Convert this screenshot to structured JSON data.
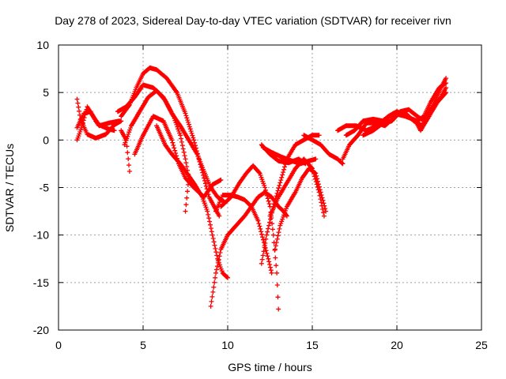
{
  "chart_data": {
    "type": "scatter",
    "title": "Day 278 of 2023, Sidereal Day-to-day VTEC variation (SDTVAR) for receiver rivn",
    "xlabel": "GPS time / hours",
    "ylabel": "SDTVAR / TECUs",
    "xlim": [
      0,
      25
    ],
    "ylim": [
      -20,
      10
    ],
    "xticks": [
      0,
      5,
      10,
      15,
      20,
      25
    ],
    "yticks": [
      -20,
      -15,
      -10,
      -5,
      0,
      5,
      10
    ],
    "grid": true,
    "marker": "+",
    "color": "#ff0000",
    "tracks": [
      [
        [
          1.1,
          4.3
        ],
        [
          1.3,
          2.2
        ],
        [
          1.7,
          0.6
        ],
        [
          2.2,
          0.2
        ],
        [
          2.8,
          0.6
        ],
        [
          3.3,
          1.6
        ],
        [
          3.7,
          2.0
        ]
      ],
      [
        [
          1.1,
          1.3
        ],
        [
          1.5,
          2.8
        ],
        [
          1.9,
          3.0
        ],
        [
          2.2,
          2.0
        ],
        [
          2.4,
          1.5
        ],
        [
          3.0,
          1.8
        ],
        [
          3.6,
          2.0
        ]
      ],
      [
        [
          1.1,
          0.0
        ],
        [
          1.4,
          1.5
        ],
        [
          1.7,
          3.5
        ],
        [
          2.0,
          2.6
        ],
        [
          2.4,
          1.6
        ],
        [
          2.9,
          1.2
        ],
        [
          3.3,
          1.0
        ]
      ],
      [
        [
          3.7,
          1.0
        ],
        [
          4.0,
          0.0
        ],
        [
          4.2,
          -3.3
        ]
      ],
      [
        [
          3.5,
          3.0
        ],
        [
          4.0,
          3.5
        ],
        [
          4.5,
          4.5
        ],
        [
          5.0,
          5.8
        ],
        [
          5.6,
          5.5
        ],
        [
          6.2,
          4.5
        ],
        [
          6.8,
          2.5
        ],
        [
          7.2,
          0.5
        ],
        [
          7.5,
          -2.0
        ],
        [
          7.7,
          -4.0
        ],
        [
          7.5,
          -7.5
        ]
      ],
      [
        [
          3.7,
          2.5
        ],
        [
          4.2,
          3.7
        ],
        [
          4.6,
          5.5
        ],
        [
          5.0,
          7.0
        ],
        [
          5.4,
          7.6
        ],
        [
          5.8,
          7.4
        ],
        [
          6.4,
          6.5
        ],
        [
          7.0,
          5.0
        ],
        [
          7.5,
          2.8
        ],
        [
          8.0,
          0.0
        ],
        [
          8.3,
          -2.0
        ],
        [
          8.6,
          -4.0
        ],
        [
          8.9,
          -6.0
        ],
        [
          9.2,
          -7.0
        ],
        [
          9.5,
          -8.0
        ]
      ],
      [
        [
          3.9,
          -0.5
        ],
        [
          4.3,
          1.5
        ],
        [
          4.8,
          3.0
        ],
        [
          5.3,
          4.5
        ],
        [
          5.8,
          5.2
        ],
        [
          6.3,
          4.2
        ],
        [
          6.7,
          2.8
        ],
        [
          7.2,
          1.5
        ],
        [
          7.7,
          0.0
        ],
        [
          8.2,
          -1.5
        ],
        [
          8.6,
          -3.3
        ],
        [
          9.0,
          -5.0
        ],
        [
          9.4,
          -6.0
        ],
        [
          9.8,
          -6.5
        ]
      ],
      [
        [
          4.5,
          -1.5
        ],
        [
          5.0,
          0.5
        ],
        [
          5.6,
          2.5
        ],
        [
          6.2,
          2.0
        ],
        [
          6.7,
          0.0
        ],
        [
          7.1,
          -2.5
        ],
        [
          7.5,
          -4.0
        ],
        [
          8.0,
          -5.0
        ],
        [
          8.6,
          -6.0
        ],
        [
          9.1,
          -4.7
        ],
        [
          9.6,
          -4.2
        ]
      ],
      [
        [
          5.8,
          1.5
        ],
        [
          6.3,
          -0.5
        ],
        [
          6.7,
          -1.5
        ],
        [
          7.2,
          -2.5
        ],
        [
          7.6,
          -3.5
        ],
        [
          8.1,
          -4.8
        ],
        [
          8.5,
          -6.0
        ],
        [
          8.8,
          -7.5
        ],
        [
          9.1,
          -10.0
        ],
        [
          9.4,
          -12.5
        ],
        [
          9.7,
          -14.0
        ],
        [
          10.0,
          -14.5
        ]
      ],
      [
        [
          9.0,
          -17.5
        ],
        [
          9.3,
          -14.0
        ],
        [
          9.6,
          -11.5
        ],
        [
          10.0,
          -10.0
        ],
        [
          10.5,
          -9.0
        ],
        [
          11.0,
          -8.0
        ],
        [
          11.4,
          -7.0
        ],
        [
          11.8,
          -6.0
        ],
        [
          12.2,
          -5.5
        ],
        [
          12.6,
          -6.0
        ],
        [
          13.0,
          -7.0
        ],
        [
          13.3,
          -7.5
        ],
        [
          13.5,
          -8.0
        ]
      ],
      [
        [
          9.3,
          -7.5
        ],
        [
          9.7,
          -5.8
        ],
        [
          10.2,
          -5.8
        ],
        [
          10.6,
          -6.0
        ],
        [
          11.0,
          -6.3
        ],
        [
          11.4,
          -7.0
        ],
        [
          11.8,
          -8.5
        ],
        [
          12.1,
          -10.5
        ],
        [
          12.4,
          -12.5
        ],
        [
          12.6,
          -14.0
        ]
      ],
      [
        [
          9.6,
          -7.0
        ],
        [
          10.2,
          -6.0
        ],
        [
          10.7,
          -4.5
        ],
        [
          11.1,
          -3.5
        ],
        [
          11.5,
          -2.7
        ],
        [
          11.9,
          -3.5
        ],
        [
          12.2,
          -5.0
        ],
        [
          12.5,
          -7.0
        ],
        [
          12.7,
          -10.0
        ],
        [
          12.9,
          -14.0
        ],
        [
          13.0,
          -17.8
        ]
      ],
      [
        [
          12.0,
          -13.0
        ],
        [
          12.3,
          -10.0
        ],
        [
          12.7,
          -7.0
        ],
        [
          13.1,
          -4.5
        ],
        [
          13.5,
          -2.0
        ],
        [
          14.0,
          -0.5
        ],
        [
          14.5,
          0.0
        ],
        [
          15.0,
          0.5
        ],
        [
          15.4,
          0.5
        ]
      ],
      [
        [
          12.8,
          -11.5
        ],
        [
          13.1,
          -9.0
        ],
        [
          13.5,
          -7.0
        ],
        [
          14.0,
          -5.5
        ],
        [
          14.4,
          -4.0
        ],
        [
          14.8,
          -3.0
        ],
        [
          15.2,
          -3.5
        ],
        [
          15.5,
          -5.5
        ],
        [
          15.8,
          -7.5
        ]
      ],
      [
        [
          12.5,
          -8.0
        ],
        [
          13.0,
          -6.0
        ],
        [
          13.5,
          -4.5
        ],
        [
          14.0,
          -3.0
        ],
        [
          14.5,
          -2.0
        ],
        [
          15.0,
          -3.0
        ],
        [
          15.4,
          -5.5
        ],
        [
          15.7,
          -8.0
        ]
      ],
      [
        [
          12.0,
          -0.5
        ],
        [
          12.5,
          -1.5
        ],
        [
          13.0,
          -2.2
        ],
        [
          13.6,
          -2.4
        ],
        [
          14.2,
          -2.0
        ],
        [
          14.6,
          -2.5
        ]
      ],
      [
        [
          12.1,
          -0.8
        ],
        [
          12.6,
          -1.3
        ],
        [
          13.2,
          -1.8
        ],
        [
          13.8,
          -2.2
        ],
        [
          14.3,
          -2.5
        ],
        [
          14.8,
          -2.2
        ],
        [
          15.2,
          -2.0
        ]
      ],
      [
        [
          14.5,
          0.5
        ],
        [
          15.0,
          0.0
        ],
        [
          15.5,
          -0.5
        ],
        [
          16.0,
          -1.5
        ],
        [
          16.5,
          -2.0
        ],
        [
          16.8,
          -2.5
        ]
      ],
      [
        [
          16.8,
          -2.0
        ],
        [
          17.2,
          -0.5
        ],
        [
          17.7,
          0.5
        ],
        [
          18.2,
          1.8
        ],
        [
          18.8,
          1.8
        ],
        [
          19.3,
          1.5
        ],
        [
          19.9,
          2.5
        ],
        [
          20.4,
          3.0
        ],
        [
          21.0,
          2.0
        ],
        [
          21.5,
          1.5
        ],
        [
          22.1,
          3.5
        ],
        [
          22.6,
          5.5
        ],
        [
          22.9,
          6.5
        ]
      ],
      [
        [
          17.0,
          0.5
        ],
        [
          17.5,
          1.0
        ],
        [
          18.0,
          2.0
        ],
        [
          18.6,
          2.2
        ],
        [
          19.2,
          2.0
        ],
        [
          19.8,
          2.8
        ],
        [
          20.5,
          2.5
        ],
        [
          21.2,
          2.0
        ],
        [
          21.6,
          2.5
        ],
        [
          22.0,
          4.0
        ],
        [
          22.5,
          5.5
        ],
        [
          22.9,
          6.0
        ]
      ],
      [
        [
          16.5,
          1.0
        ],
        [
          17.0,
          1.5
        ],
        [
          17.6,
          1.5
        ],
        [
          18.2,
          1.0
        ],
        [
          18.8,
          1.5
        ],
        [
          19.5,
          2.5
        ],
        [
          20.0,
          3.0
        ],
        [
          20.6,
          2.5
        ],
        [
          21.1,
          2.0
        ],
        [
          21.4,
          1.0
        ],
        [
          21.9,
          2.5
        ],
        [
          22.4,
          4.0
        ],
        [
          22.9,
          5.0
        ]
      ],
      [
        [
          18.0,
          0.5
        ],
        [
          18.6,
          1.0
        ],
        [
          19.2,
          1.8
        ],
        [
          19.7,
          2.0
        ],
        [
          20.2,
          3.0
        ],
        [
          20.7,
          3.2
        ],
        [
          21.2,
          2.5
        ],
        [
          21.6,
          2.0
        ],
        [
          22.1,
          3.5
        ],
        [
          22.6,
          4.5
        ],
        [
          22.9,
          5.5
        ]
      ]
    ]
  }
}
